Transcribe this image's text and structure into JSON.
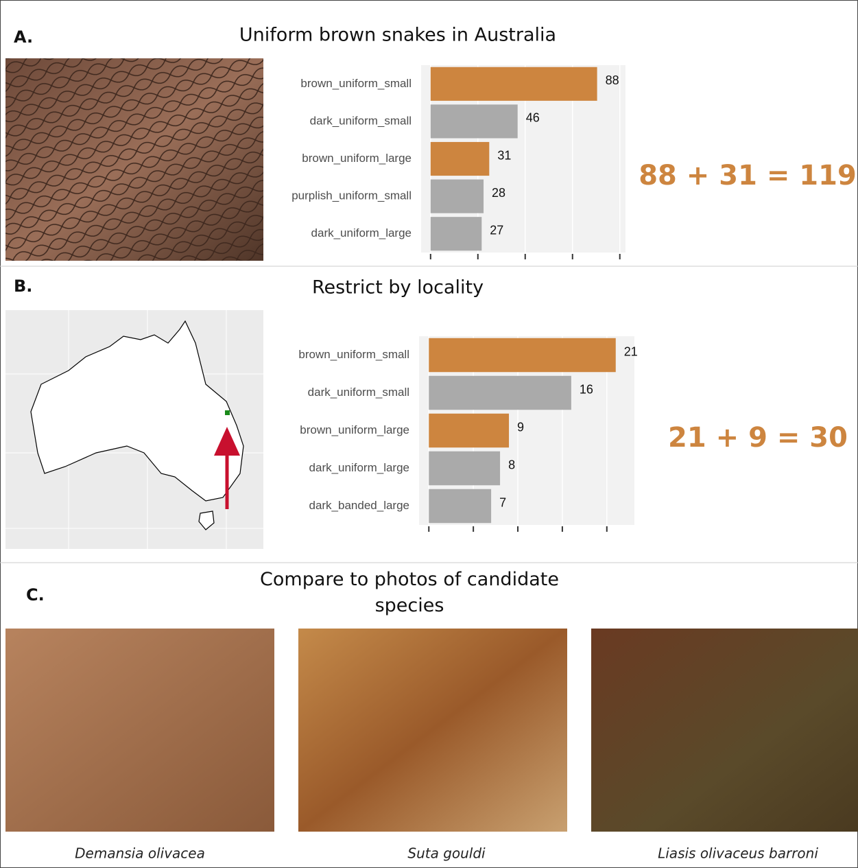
{
  "panels": [
    {
      "label": "A.",
      "title": "Uniform brown snakes in Australia"
    },
    {
      "label": "B.",
      "title": "Restrict by locality"
    },
    {
      "label": "C.",
      "title": "Compare to photos of candidate species"
    }
  ],
  "chart_data": [
    {
      "type": "bar",
      "orientation": "horizontal",
      "categories": [
        "brown_uniform_small",
        "dark_uniform_small",
        "brown_uniform_large",
        "purplish_uniform_small",
        "dark_uniform_large"
      ],
      "values": [
        88,
        46,
        31,
        28,
        27
      ],
      "colors": [
        "#cd853f",
        "#aaaaaa",
        "#cd853f",
        "#aaaaaa",
        "#aaaaaa"
      ],
      "xlim": [
        -5,
        103
      ],
      "xticks": [
        0,
        25,
        50,
        75,
        100
      ],
      "grid": true,
      "annotation": "88 + 31 = 119"
    },
    {
      "type": "bar",
      "orientation": "horizontal",
      "categories": [
        "brown_uniform_small",
        "dark_uniform_small",
        "brown_uniform_large",
        "dark_uniform_large",
        "dark_banded_large"
      ],
      "values": [
        21,
        16,
        9,
        8,
        7
      ],
      "colors": [
        "#cd853f",
        "#aaaaaa",
        "#cd853f",
        "#aaaaaa",
        "#aaaaaa"
      ],
      "xlim": [
        -1.1,
        23.1
      ],
      "xticks": [
        0,
        5,
        10,
        15,
        20
      ],
      "grid": true,
      "annotation": "21 + 9 = 30"
    }
  ],
  "photos": [
    {
      "caption": "Demansia olivacea"
    },
    {
      "caption": "Suta gouldi"
    },
    {
      "caption": "Liasis olivaceus barroni"
    }
  ]
}
